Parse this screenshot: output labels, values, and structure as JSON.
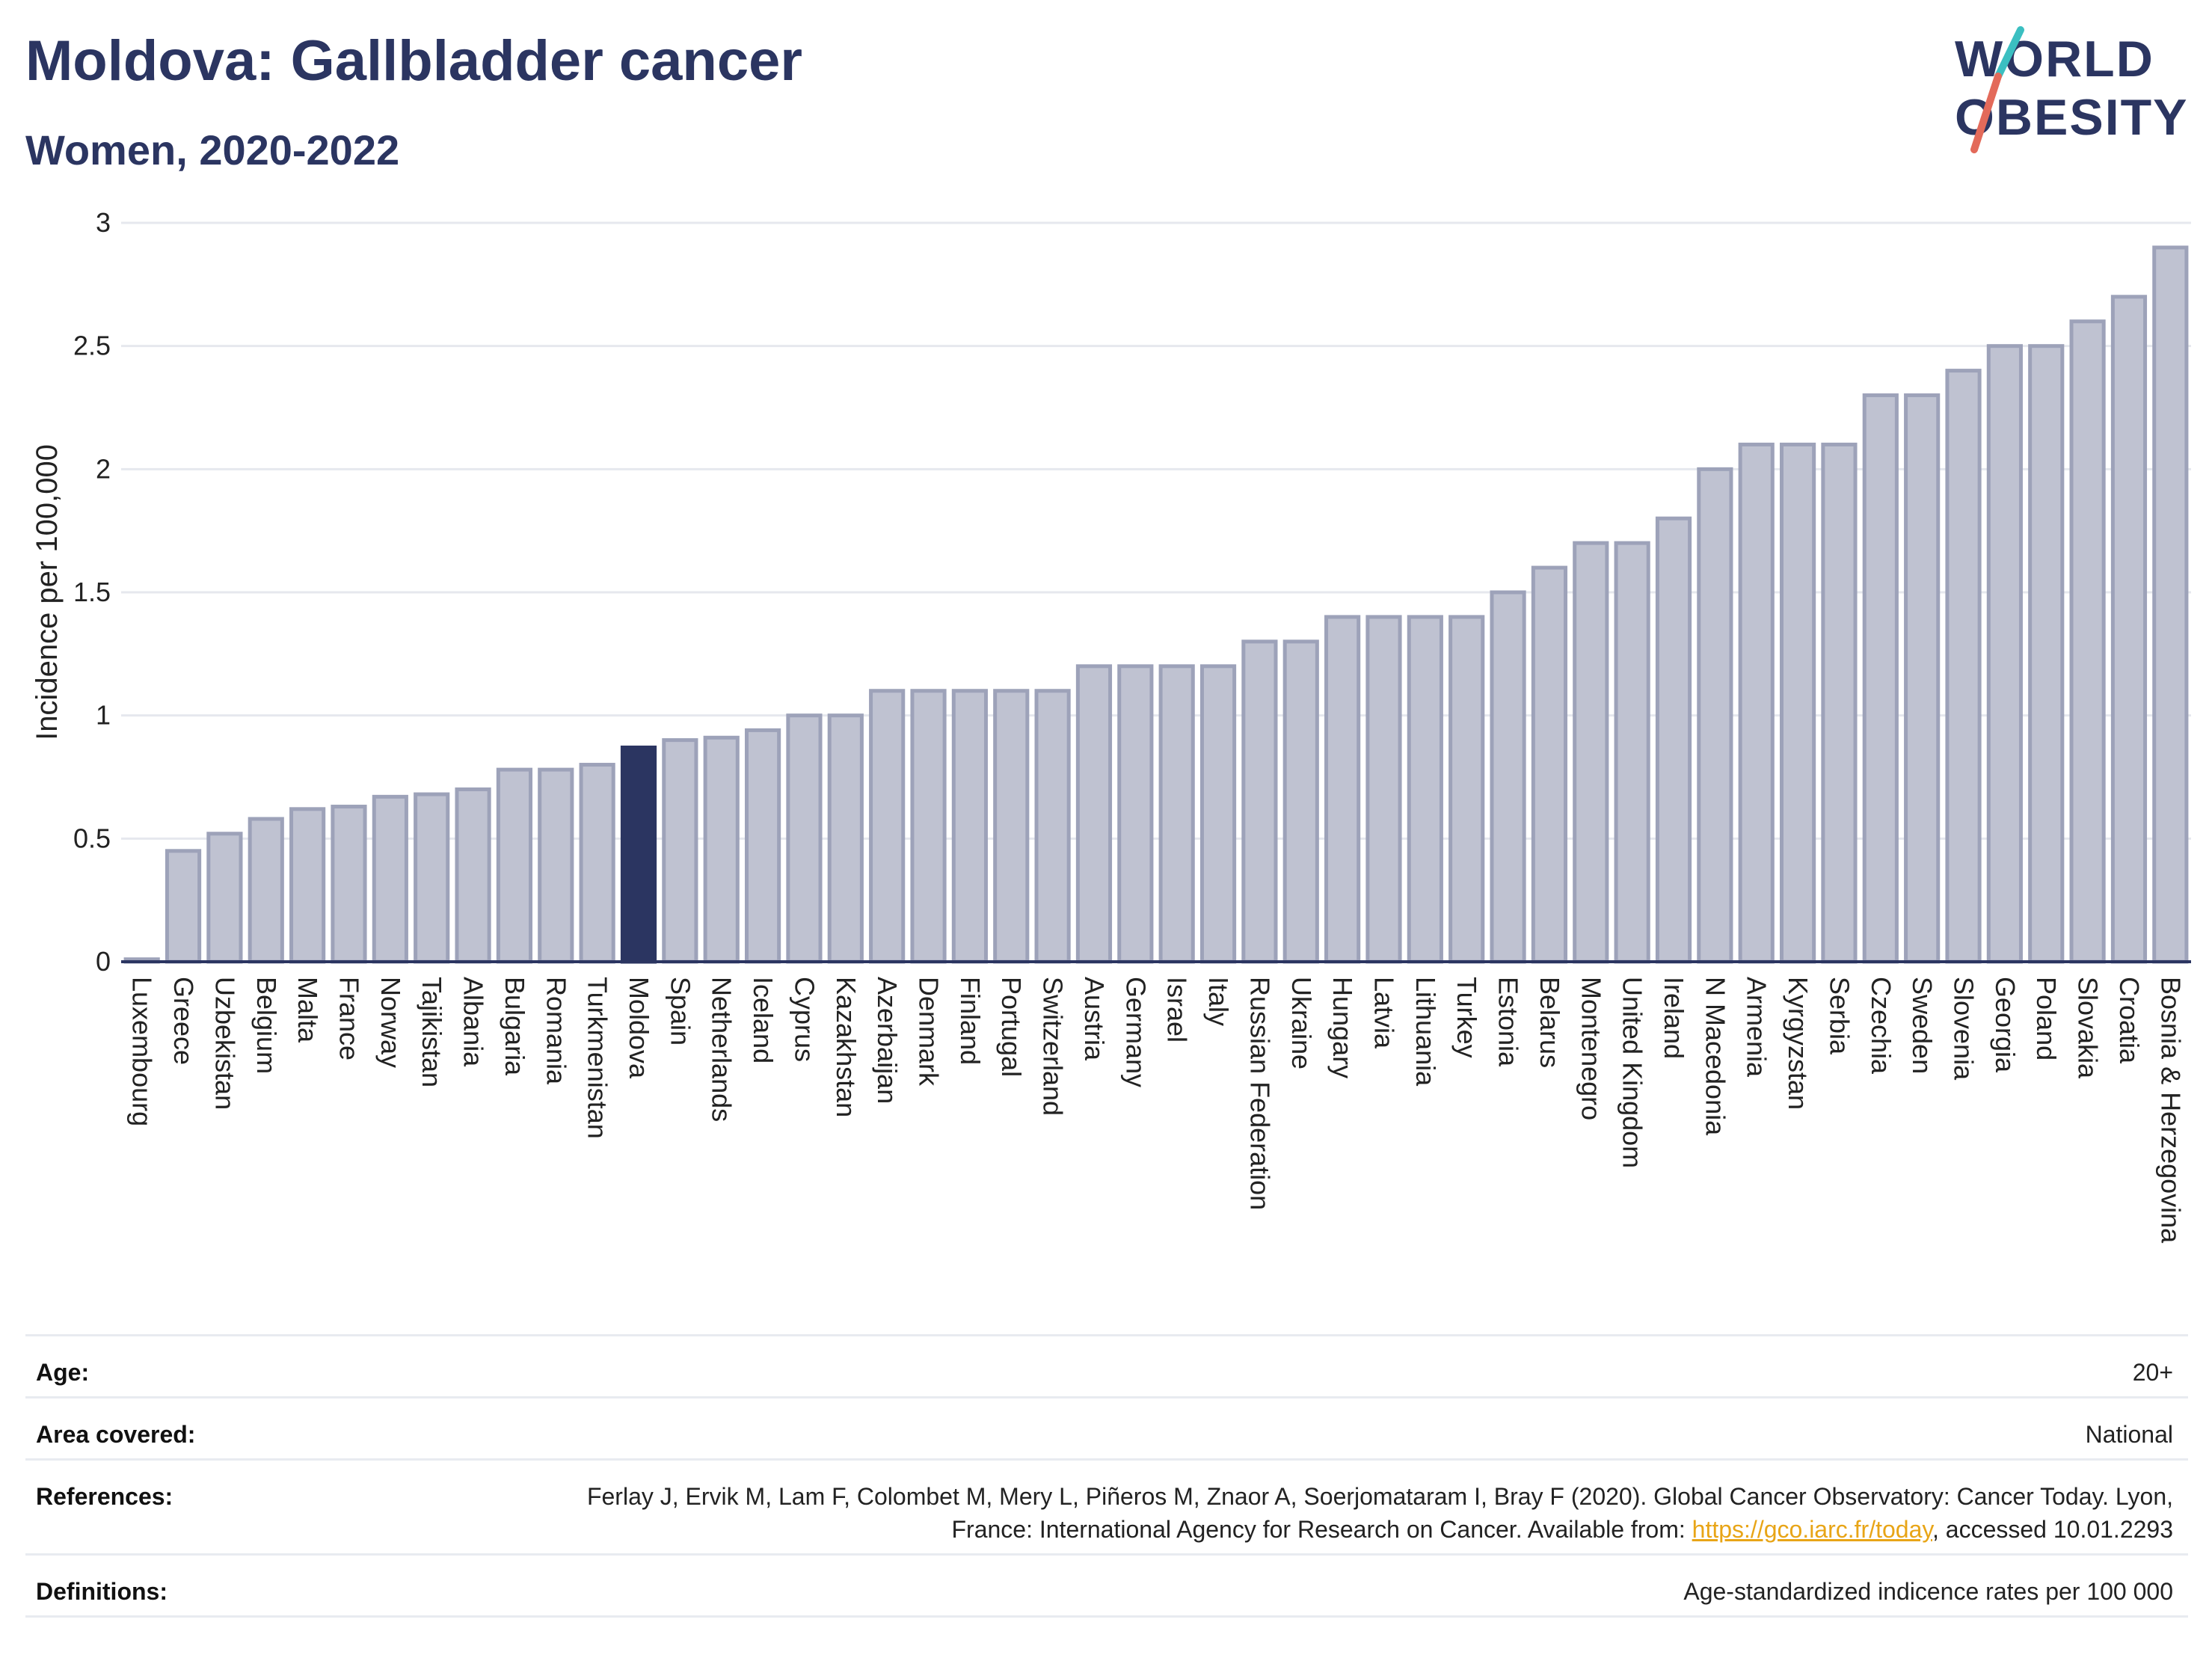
{
  "header": {
    "title": "Moldova: Gallbladder cancer",
    "subtitle": "Women, 2020-2022"
  },
  "logo": {
    "line1": "WORLD",
    "line2": "OBESITY"
  },
  "colors": {
    "highlight": "#2b3561",
    "bar_fill": "#bfc2d1",
    "bar_stroke": "#9da2b9",
    "text": "#2b3561",
    "logo_teal": "#3bbfc1",
    "logo_coral": "#e36a5a"
  },
  "chart_data": {
    "type": "bar",
    "ylabel": "Incidence per 100,000",
    "xlabel": "",
    "ylim": [
      0,
      3
    ],
    "yticks": [
      0,
      0.5,
      1,
      1.5,
      2,
      2.5,
      3
    ],
    "ytick_labels": [
      "0",
      "0.5",
      "1",
      "1.5",
      "2",
      "2.5",
      "3"
    ],
    "grid": true,
    "highlight": "Moldova",
    "categories": [
      "Luxembourg",
      "Greece",
      "Uzbekistan",
      "Belgium",
      "Malta",
      "France",
      "Norway",
      "Tajikistan",
      "Albania",
      "Bulgaria",
      "Romania",
      "Turkmenistan",
      "Moldova",
      "Spain",
      "Netherlands",
      "Iceland",
      "Cyprus",
      "Kazakhstan",
      "Azerbaijan",
      "Denmark",
      "Finland",
      "Portugal",
      "Switzerland",
      "Austria",
      "Germany",
      "Israel",
      "Italy",
      "Russian Federation",
      "Ukraine",
      "Hungary",
      "Latvia",
      "Lithuania",
      "Turkey",
      "Estonia",
      "Belarus",
      "Montenegro",
      "United Kingdom",
      "Ireland",
      "N Macedonia",
      "Armenia",
      "Kyrgyzstan",
      "Serbia",
      "Czechia",
      "Sweden",
      "Slovenia",
      "Georgia",
      "Poland",
      "Slovakia",
      "Croatia",
      "Bosnia & Herzegovina"
    ],
    "values": [
      0.01,
      0.45,
      0.52,
      0.58,
      0.62,
      0.63,
      0.67,
      0.68,
      0.7,
      0.78,
      0.78,
      0.8,
      0.87,
      0.9,
      0.91,
      0.94,
      1.0,
      1.0,
      1.1,
      1.1,
      1.1,
      1.1,
      1.1,
      1.2,
      1.2,
      1.2,
      1.2,
      1.3,
      1.3,
      1.4,
      1.4,
      1.4,
      1.4,
      1.5,
      1.6,
      1.7,
      1.7,
      1.8,
      2.0,
      2.1,
      2.1,
      2.1,
      2.3,
      2.3,
      2.4,
      2.5,
      2.5,
      2.6,
      2.7,
      2.9
    ]
  },
  "meta": {
    "age_label": "Age:",
    "age_value": "20+",
    "area_label": "Area covered:",
    "area_value": "National",
    "references_label": "References:",
    "references_text": "Ferlay J, Ervik M, Lam F, Colombet M, Mery L, Piñeros M, Znaor A, Soerjomataram I, Bray F (2020). Global Cancer Observatory: Cancer Today. Lyon, France: International Agency for Research on Cancer. Available from: ",
    "references_link": "https://gco.iarc.fr/today",
    "references_suffix": ", accessed 10.01.2293",
    "definitions_label": "Definitions:",
    "definitions_value": "Age-standardized indicence rates per 100 000"
  }
}
